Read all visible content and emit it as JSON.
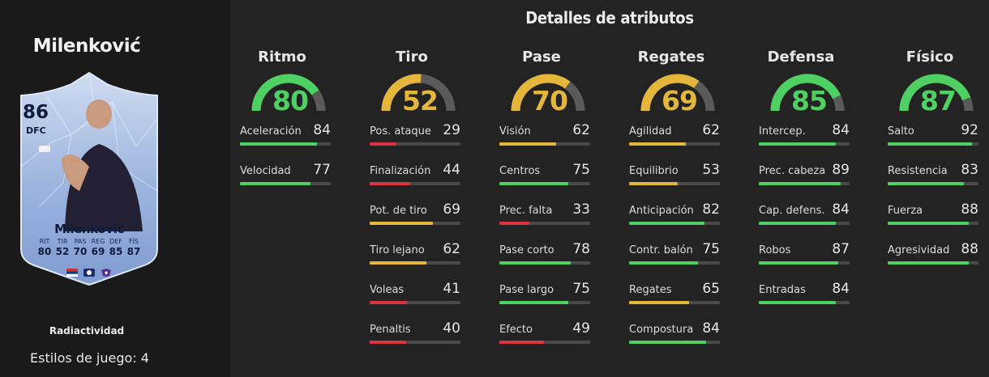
{
  "player": {
    "name": "Milenković",
    "rating": "86",
    "position": "DFC",
    "card_name": "Milenković",
    "card_stats": [
      {
        "label": "RIT",
        "value": "80"
      },
      {
        "label": "TIR",
        "value": "52"
      },
      {
        "label": "PAS",
        "value": "70"
      },
      {
        "label": "REG",
        "value": "69"
      },
      {
        "label": "DEF",
        "value": "85"
      },
      {
        "label": "FÍS",
        "value": "87"
      }
    ],
    "version": "Radiactividad",
    "playstyles": "Estilos de juego: 4"
  },
  "section_title": "Detalles de atributos",
  "colors": {
    "green": "#4fd063",
    "yellow": "#e4b73a",
    "red": "#d9343f",
    "track": "#4a4a4a",
    "gauge_rest": "#5a5a5a"
  },
  "categories": [
    {
      "name": "Ritmo",
      "value": 80,
      "color": "#4fd063",
      "stats": [
        {
          "name": "Aceleración",
          "value": 84
        },
        {
          "name": "Velocidad",
          "value": 77
        }
      ]
    },
    {
      "name": "Tiro",
      "value": 52,
      "color": "#e4b73a",
      "stats": [
        {
          "name": "Pos. ataque",
          "value": 29
        },
        {
          "name": "Finalización",
          "value": 44
        },
        {
          "name": "Pot. de tiro",
          "value": 69
        },
        {
          "name": "Tiro lejano",
          "value": 62
        },
        {
          "name": "Voleas",
          "value": 41
        },
        {
          "name": "Penaltis",
          "value": 40
        }
      ]
    },
    {
      "name": "Pase",
      "value": 70,
      "color": "#e4b73a",
      "stats": [
        {
          "name": "Visión",
          "value": 62
        },
        {
          "name": "Centros",
          "value": 75
        },
        {
          "name": "Prec. falta",
          "value": 33
        },
        {
          "name": "Pase corto",
          "value": 78
        },
        {
          "name": "Pase largo",
          "value": 75
        },
        {
          "name": "Efecto",
          "value": 49
        }
      ]
    },
    {
      "name": "Regates",
      "value": 69,
      "color": "#e4b73a",
      "stats": [
        {
          "name": "Agilidad",
          "value": 62
        },
        {
          "name": "Equilibrio",
          "value": 53
        },
        {
          "name": "Anticipación",
          "value": 82
        },
        {
          "name": "Contr. balón",
          "value": 75
        },
        {
          "name": "Regates",
          "value": 65
        },
        {
          "name": "Compostura",
          "value": 84
        }
      ]
    },
    {
      "name": "Defensa",
      "value": 85,
      "color": "#4fd063",
      "stats": [
        {
          "name": "Intercep.",
          "value": 84
        },
        {
          "name": "Prec. cabeza",
          "value": 89
        },
        {
          "name": "Cap. defens.",
          "value": 84
        },
        {
          "name": "Robos",
          "value": 87
        },
        {
          "name": "Entradas",
          "value": 84
        }
      ]
    },
    {
      "name": "Físico",
      "value": 87,
      "color": "#4fd063",
      "stats": [
        {
          "name": "Salto",
          "value": 92
        },
        {
          "name": "Resistencia",
          "value": 83
        },
        {
          "name": "Fuerza",
          "value": 88
        },
        {
          "name": "Agresividad",
          "value": 88
        }
      ]
    }
  ]
}
